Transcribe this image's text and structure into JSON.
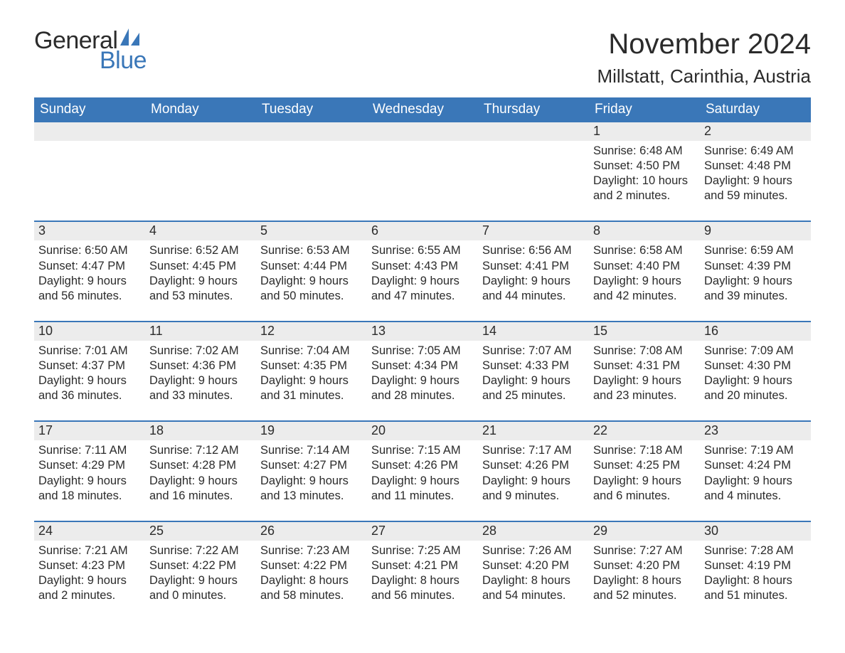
{
  "logo": {
    "word1": "General",
    "word2": "Blue",
    "word1_color": "#2b2b2b",
    "word2_color": "#3a77b8",
    "sail_color": "#3a77b8"
  },
  "title": "November 2024",
  "location": "Millstatt, Carinthia, Austria",
  "colors": {
    "header_bg": "#3a77b8",
    "header_text": "#ffffff",
    "row_border": "#3a77b8",
    "daynum_bg": "#ececec",
    "body_text": "#2b2b2b",
    "page_bg": "#ffffff"
  },
  "typography": {
    "title_fontsize": 40,
    "location_fontsize": 26,
    "weekday_fontsize": 19,
    "daynum_fontsize": 18,
    "body_fontsize": 16.5,
    "font_family": "Arial"
  },
  "layout": {
    "columns": 7,
    "rows": 5,
    "first_day_column_index": 5
  },
  "weekdays": [
    "Sunday",
    "Monday",
    "Tuesday",
    "Wednesday",
    "Thursday",
    "Friday",
    "Saturday"
  ],
  "weeks": [
    [
      {
        "blank": true
      },
      {
        "blank": true
      },
      {
        "blank": true
      },
      {
        "blank": true
      },
      {
        "blank": true
      },
      {
        "day": "1",
        "sunrise": "Sunrise: 6:48 AM",
        "sunset": "Sunset: 4:50 PM",
        "daylight": "Daylight: 10 hours and 2 minutes."
      },
      {
        "day": "2",
        "sunrise": "Sunrise: 6:49 AM",
        "sunset": "Sunset: 4:48 PM",
        "daylight": "Daylight: 9 hours and 59 minutes."
      }
    ],
    [
      {
        "day": "3",
        "sunrise": "Sunrise: 6:50 AM",
        "sunset": "Sunset: 4:47 PM",
        "daylight": "Daylight: 9 hours and 56 minutes."
      },
      {
        "day": "4",
        "sunrise": "Sunrise: 6:52 AM",
        "sunset": "Sunset: 4:45 PM",
        "daylight": "Daylight: 9 hours and 53 minutes."
      },
      {
        "day": "5",
        "sunrise": "Sunrise: 6:53 AM",
        "sunset": "Sunset: 4:44 PM",
        "daylight": "Daylight: 9 hours and 50 minutes."
      },
      {
        "day": "6",
        "sunrise": "Sunrise: 6:55 AM",
        "sunset": "Sunset: 4:43 PM",
        "daylight": "Daylight: 9 hours and 47 minutes."
      },
      {
        "day": "7",
        "sunrise": "Sunrise: 6:56 AM",
        "sunset": "Sunset: 4:41 PM",
        "daylight": "Daylight: 9 hours and 44 minutes."
      },
      {
        "day": "8",
        "sunrise": "Sunrise: 6:58 AM",
        "sunset": "Sunset: 4:40 PM",
        "daylight": "Daylight: 9 hours and 42 minutes."
      },
      {
        "day": "9",
        "sunrise": "Sunrise: 6:59 AM",
        "sunset": "Sunset: 4:39 PM",
        "daylight": "Daylight: 9 hours and 39 minutes."
      }
    ],
    [
      {
        "day": "10",
        "sunrise": "Sunrise: 7:01 AM",
        "sunset": "Sunset: 4:37 PM",
        "daylight": "Daylight: 9 hours and 36 minutes."
      },
      {
        "day": "11",
        "sunrise": "Sunrise: 7:02 AM",
        "sunset": "Sunset: 4:36 PM",
        "daylight": "Daylight: 9 hours and 33 minutes."
      },
      {
        "day": "12",
        "sunrise": "Sunrise: 7:04 AM",
        "sunset": "Sunset: 4:35 PM",
        "daylight": "Daylight: 9 hours and 31 minutes."
      },
      {
        "day": "13",
        "sunrise": "Sunrise: 7:05 AM",
        "sunset": "Sunset: 4:34 PM",
        "daylight": "Daylight: 9 hours and 28 minutes."
      },
      {
        "day": "14",
        "sunrise": "Sunrise: 7:07 AM",
        "sunset": "Sunset: 4:33 PM",
        "daylight": "Daylight: 9 hours and 25 minutes."
      },
      {
        "day": "15",
        "sunrise": "Sunrise: 7:08 AM",
        "sunset": "Sunset: 4:31 PM",
        "daylight": "Daylight: 9 hours and 23 minutes."
      },
      {
        "day": "16",
        "sunrise": "Sunrise: 7:09 AM",
        "sunset": "Sunset: 4:30 PM",
        "daylight": "Daylight: 9 hours and 20 minutes."
      }
    ],
    [
      {
        "day": "17",
        "sunrise": "Sunrise: 7:11 AM",
        "sunset": "Sunset: 4:29 PM",
        "daylight": "Daylight: 9 hours and 18 minutes."
      },
      {
        "day": "18",
        "sunrise": "Sunrise: 7:12 AM",
        "sunset": "Sunset: 4:28 PM",
        "daylight": "Daylight: 9 hours and 16 minutes."
      },
      {
        "day": "19",
        "sunrise": "Sunrise: 7:14 AM",
        "sunset": "Sunset: 4:27 PM",
        "daylight": "Daylight: 9 hours and 13 minutes."
      },
      {
        "day": "20",
        "sunrise": "Sunrise: 7:15 AM",
        "sunset": "Sunset: 4:26 PM",
        "daylight": "Daylight: 9 hours and 11 minutes."
      },
      {
        "day": "21",
        "sunrise": "Sunrise: 7:17 AM",
        "sunset": "Sunset: 4:26 PM",
        "daylight": "Daylight: 9 hours and 9 minutes."
      },
      {
        "day": "22",
        "sunrise": "Sunrise: 7:18 AM",
        "sunset": "Sunset: 4:25 PM",
        "daylight": "Daylight: 9 hours and 6 minutes."
      },
      {
        "day": "23",
        "sunrise": "Sunrise: 7:19 AM",
        "sunset": "Sunset: 4:24 PM",
        "daylight": "Daylight: 9 hours and 4 minutes."
      }
    ],
    [
      {
        "day": "24",
        "sunrise": "Sunrise: 7:21 AM",
        "sunset": "Sunset: 4:23 PM",
        "daylight": "Daylight: 9 hours and 2 minutes."
      },
      {
        "day": "25",
        "sunrise": "Sunrise: 7:22 AM",
        "sunset": "Sunset: 4:22 PM",
        "daylight": "Daylight: 9 hours and 0 minutes."
      },
      {
        "day": "26",
        "sunrise": "Sunrise: 7:23 AM",
        "sunset": "Sunset: 4:22 PM",
        "daylight": "Daylight: 8 hours and 58 minutes."
      },
      {
        "day": "27",
        "sunrise": "Sunrise: 7:25 AM",
        "sunset": "Sunset: 4:21 PM",
        "daylight": "Daylight: 8 hours and 56 minutes."
      },
      {
        "day": "28",
        "sunrise": "Sunrise: 7:26 AM",
        "sunset": "Sunset: 4:20 PM",
        "daylight": "Daylight: 8 hours and 54 minutes."
      },
      {
        "day": "29",
        "sunrise": "Sunrise: 7:27 AM",
        "sunset": "Sunset: 4:20 PM",
        "daylight": "Daylight: 8 hours and 52 minutes."
      },
      {
        "day": "30",
        "sunrise": "Sunrise: 7:28 AM",
        "sunset": "Sunset: 4:19 PM",
        "daylight": "Daylight: 8 hours and 51 minutes."
      }
    ]
  ]
}
